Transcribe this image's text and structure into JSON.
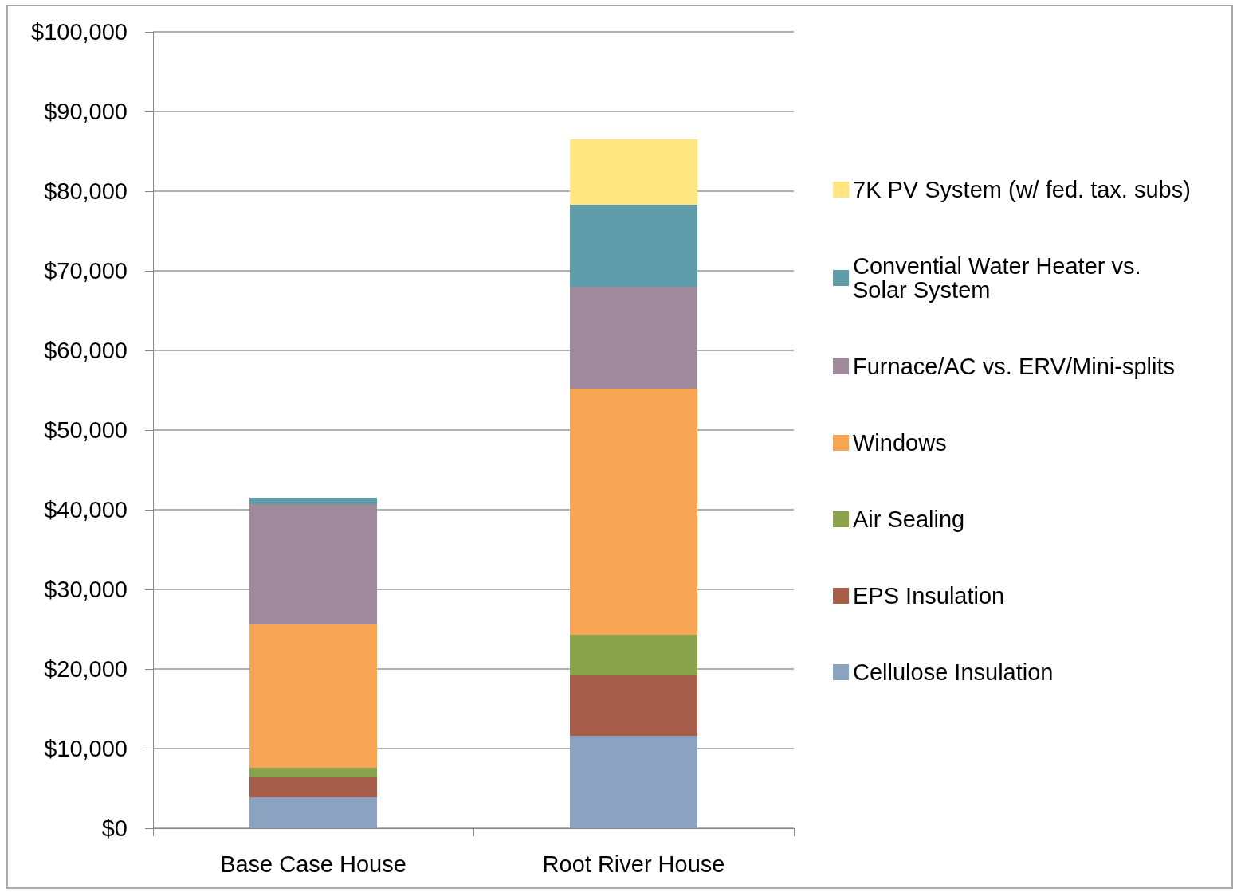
{
  "chart_data": {
    "type": "bar",
    "stacked": true,
    "categories": [
      "Base Case House",
      "Root River House"
    ],
    "series": [
      {
        "name": "Cellulose Insulation",
        "color": "#8ba3c1",
        "values": [
          3900,
          11600
        ]
      },
      {
        "name": "EPS Insulation",
        "color": "#a65e4b",
        "values": [
          2500,
          7600
        ]
      },
      {
        "name": "Air Sealing",
        "color": "#8ba24c",
        "values": [
          1200,
          5100
        ]
      },
      {
        "name": "Windows",
        "color": "#f8a656",
        "values": [
          18000,
          30900
        ]
      },
      {
        "name": "Furnace/AC vs. ERV/Mini-splits",
        "color": "#9e8a9b",
        "values": [
          15100,
          12800
        ]
      },
      {
        "name": "Convential Water Heater vs. Solar System",
        "color": "#5f9dab",
        "values": [
          800,
          10300
        ]
      },
      {
        "name": "7K PV System (w/ fed. tax. subs)",
        "color": "#ffe680",
        "values": [
          0,
          8200
        ]
      }
    ],
    "ylim": [
      0,
      100000
    ],
    "yticks": [
      {
        "value": 0,
        "label": "$0"
      },
      {
        "value": 10000,
        "label": "$10,000"
      },
      {
        "value": 20000,
        "label": "$20,000"
      },
      {
        "value": 30000,
        "label": "$30,000"
      },
      {
        "value": 40000,
        "label": "$40,000"
      },
      {
        "value": 50000,
        "label": "$50,000"
      },
      {
        "value": 60000,
        "label": "$60,000"
      },
      {
        "value": 70000,
        "label": "$70,000"
      },
      {
        "value": 80000,
        "label": "$80,000"
      },
      {
        "value": 90000,
        "label": "$90,000"
      },
      {
        "value": 100000,
        "label": "$100,000"
      }
    ],
    "grid": true,
    "legend": "right"
  }
}
